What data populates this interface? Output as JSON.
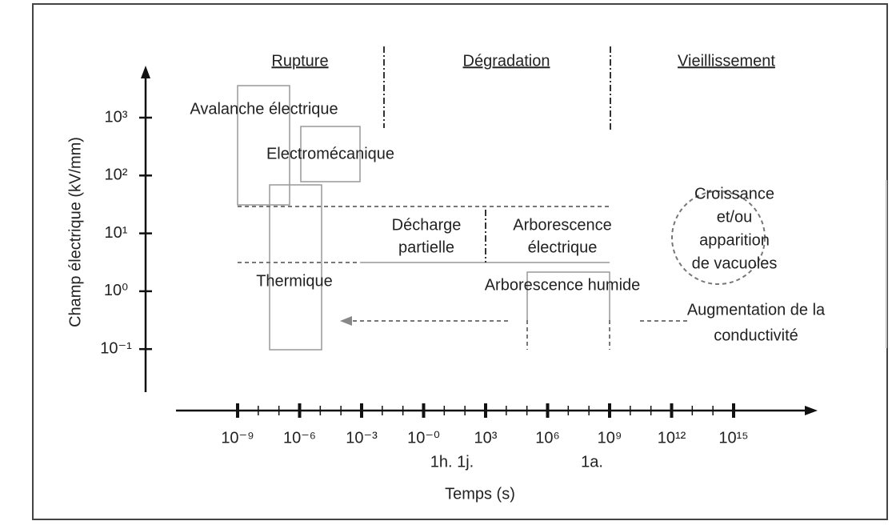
{
  "headers": [
    "Rupture",
    "Dégradation",
    "Vieillissement"
  ],
  "y_axis": {
    "label": "Champ électrique (kV/mm)",
    "ticks": [
      "10³",
      "10²",
      "10¹",
      "10⁰",
      "10⁻¹"
    ]
  },
  "x_axis": {
    "label": "Temps (s)",
    "ticks": [
      "10⁻⁹",
      "10⁻⁶",
      "10⁻³",
      "10⁻⁰",
      "10³",
      "10⁶",
      "10⁹",
      "10¹²",
      "10¹⁵"
    ],
    "notes": [
      "1h. 1j.",
      "1a."
    ]
  },
  "regions": [
    {
      "lines": [
        "Avalanche électrique"
      ]
    },
    {
      "lines": [
        "Electromécanique"
      ]
    },
    {
      "lines": [
        "Thermique"
      ]
    },
    {
      "lines": [
        "Décharge",
        "partielle"
      ]
    },
    {
      "lines": [
        "Arborescence",
        "électrique"
      ]
    },
    {
      "lines": [
        "Arborescence humide"
      ]
    },
    {
      "lines": [
        "Croissance",
        "et/ou",
        "apparition",
        "de vacuoles"
      ]
    },
    {
      "lines": [
        "Augmentation de la",
        "conductivité"
      ]
    }
  ]
}
